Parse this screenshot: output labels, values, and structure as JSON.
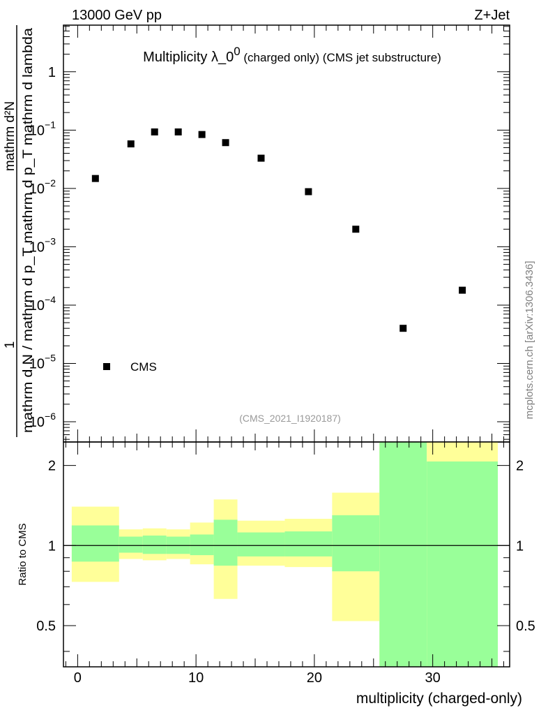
{
  "header": {
    "left": "13000 GeV pp",
    "right": "Z+Jet"
  },
  "colors": {
    "band_inner": "#99ff99",
    "band_outer": "#ffff99",
    "marker": "#000000",
    "side_text": "#7f7f7f",
    "ref_text": "#999999"
  },
  "chart_data": [
    {
      "type": "scatter",
      "title": "Multiplicity λ_0",
      "title_superscript": "0",
      "title_suffix": " (charged only) (CMS jet substructure)",
      "ylabel_numerator": "1",
      "ylabel_denominator": "mathrm d N / mathrm d p_T mathrm d p_T mathrm d lambda",
      "ylabel_top": "mathrm d²N",
      "yscale": "log",
      "ylim": [
        4.5e-07,
        6.3
      ],
      "xlim": [
        -1.2,
        36.5
      ],
      "y_ticks": [
        {
          "value": 1,
          "mantissa": "1",
          "exp": ""
        },
        {
          "value": 0.1,
          "mantissa": "10",
          "exp": "−1"
        },
        {
          "value": 0.01,
          "mantissa": "10",
          "exp": "−2"
        },
        {
          "value": 0.001,
          "mantissa": "10",
          "exp": "−3"
        },
        {
          "value": 0.0001,
          "mantissa": "10",
          "exp": "−4"
        },
        {
          "value": 1e-05,
          "mantissa": "10",
          "exp": "−5"
        },
        {
          "value": 1e-06,
          "mantissa": "10",
          "exp": "−6"
        }
      ],
      "legend": {
        "label": "CMS",
        "position": "bottom-left"
      },
      "annotation": "(CMS_2021_I1920187)",
      "series": [
        {
          "name": "CMS",
          "x": [
            1.5,
            4.5,
            6.5,
            8.5,
            10.5,
            12.5,
            15.5,
            19.5,
            23.5,
            27.5,
            32.5
          ],
          "y": [
            0.0148,
            0.058,
            0.093,
            0.093,
            0.084,
            0.061,
            0.033,
            0.0088,
            0.002,
            4e-05,
            0.00018
          ]
        }
      ]
    },
    {
      "type": "area",
      "ylabel": "Ratio to CMS",
      "xlabel": "multiplicity (charged-only)",
      "yscale": "log",
      "ylim": [
        0.35,
        2.45
      ],
      "xlim": [
        -1.2,
        36.5
      ],
      "x_ticks": [
        0,
        10,
        20,
        30
      ],
      "y_ticks": [
        {
          "value": 0.5,
          "label": "0.5"
        },
        {
          "value": 1,
          "label": "1"
        },
        {
          "value": 2,
          "label": "2"
        }
      ],
      "reference_line": 1,
      "bands": [
        {
          "x0": -0.5,
          "x1": 3.5,
          "outer": [
            0.73,
            1.4
          ],
          "inner": [
            0.87,
            1.19
          ]
        },
        {
          "x0": 3.5,
          "x1": 5.5,
          "outer": [
            0.89,
            1.15
          ],
          "inner": [
            0.94,
            1.08
          ]
        },
        {
          "x0": 5.5,
          "x1": 7.5,
          "outer": [
            0.88,
            1.16
          ],
          "inner": [
            0.93,
            1.09
          ]
        },
        {
          "x0": 7.5,
          "x1": 9.5,
          "outer": [
            0.89,
            1.15
          ],
          "inner": [
            0.93,
            1.08
          ]
        },
        {
          "x0": 9.5,
          "x1": 11.5,
          "outer": [
            0.85,
            1.22
          ],
          "inner": [
            0.92,
            1.1
          ]
        },
        {
          "x0": 11.5,
          "x1": 13.5,
          "outer": [
            0.63,
            1.49
          ],
          "inner": [
            0.84,
            1.25
          ]
        },
        {
          "x0": 13.5,
          "x1": 17.5,
          "outer": [
            0.84,
            1.24
          ],
          "inner": [
            0.91,
            1.12
          ]
        },
        {
          "x0": 17.5,
          "x1": 21.5,
          "outer": [
            0.83,
            1.26
          ],
          "inner": [
            0.91,
            1.13
          ]
        },
        {
          "x0": 21.5,
          "x1": 25.5,
          "outer": [
            0.52,
            1.58
          ],
          "inner": [
            0.8,
            1.3
          ]
        },
        {
          "x0": 25.5,
          "x1": 29.5,
          "outer": [
            0.3,
            3.0
          ],
          "inner": [
            0.3,
            3.0
          ]
        },
        {
          "x0": 29.5,
          "x1": 35.5,
          "outer": [
            0.3,
            3.0
          ],
          "inner": [
            0.3,
            2.07
          ]
        }
      ]
    }
  ],
  "side_label": "mcplots.cern.ch [arXiv:1306.3436]"
}
